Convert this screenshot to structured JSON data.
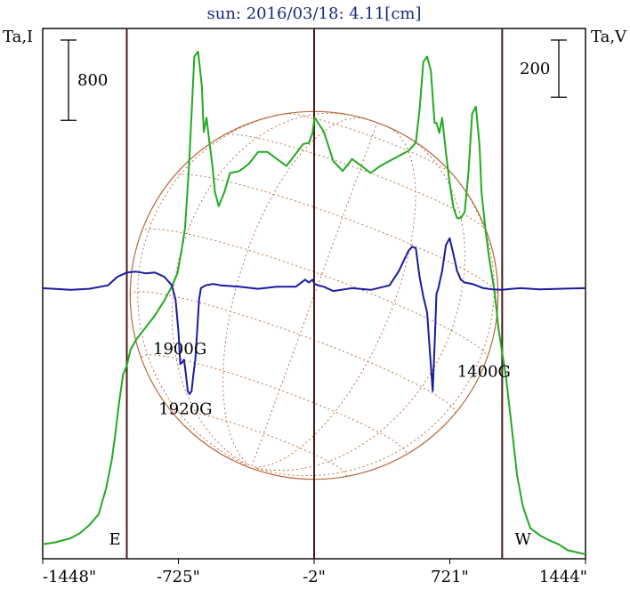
{
  "title": "sun: 2016/03/18: 4.11[cm]",
  "chart_data": {
    "type": "line",
    "x_unit": "arcsec",
    "xlim": [
      -1448,
      1444
    ],
    "x_ticks": [
      -1448,
      -725,
      -2,
      721,
      1444
    ],
    "x_tick_labels": [
      "-1448\"",
      "-725\"",
      "-2\"",
      "721\"",
      "1444\""
    ],
    "left_axis_label": "Ta,I",
    "right_axis_label": "Ta,V",
    "left_scale_bar": 800,
    "left_scale_bar_label": "800",
    "right_scale_bar": 200,
    "right_scale_bar_label": "200",
    "vertical_markers": [
      {
        "x": -1000,
        "label": "E"
      },
      {
        "x": -2,
        "label": ""
      },
      {
        "x": 1000,
        "label": "W"
      }
    ],
    "disk": {
      "center_x": -2,
      "radius_arcsec": 980,
      "color": "#b5653a"
    },
    "series": [
      {
        "key": "I",
        "color": "#22aa22",
        "x": [
          -1448,
          -1380,
          -1300,
          -1250,
          -1200,
          -1150,
          -1110,
          -1080,
          -1060,
          -1040,
          -1020,
          -1000,
          -980,
          -950,
          -900,
          -850,
          -800,
          -760,
          -730,
          -710,
          -690,
          -670,
          -655,
          -640,
          -620,
          -600,
          -590,
          -575,
          -560,
          -545,
          -530,
          -510,
          -480,
          -450,
          -400,
          -350,
          -300,
          -250,
          -200,
          -150,
          -100,
          -60,
          -30,
          -10,
          0,
          20,
          50,
          100,
          150,
          200,
          250,
          300,
          350,
          400,
          450,
          500,
          540,
          560,
          580,
          600,
          620,
          640,
          650,
          665,
          680,
          700,
          720,
          740,
          760,
          780,
          800,
          820,
          840,
          860,
          870,
          880,
          890,
          910,
          930,
          960,
          980,
          1000,
          1020,
          1050,
          1080,
          1110,
          1150,
          1200,
          1250,
          1300,
          1350,
          1444
        ],
        "y": [
          40,
          60,
          100,
          150,
          230,
          340,
          600,
          880,
          1150,
          1470,
          1730,
          1820,
          1980,
          2080,
          2200,
          2320,
          2470,
          2610,
          2740,
          2950,
          3190,
          3760,
          4330,
          4900,
          4950,
          4600,
          4150,
          4290,
          4050,
          3830,
          3550,
          3410,
          3550,
          3740,
          3760,
          3830,
          3950,
          3950,
          3880,
          3810,
          3930,
          4030,
          4040,
          4140,
          4290,
          4240,
          4150,
          3860,
          3760,
          3880,
          3810,
          3740,
          3810,
          3860,
          3910,
          3960,
          4040,
          4370,
          4850,
          4900,
          4760,
          4240,
          4240,
          4140,
          4290,
          3950,
          3640,
          3400,
          3290,
          3290,
          3350,
          3740,
          4330,
          4400,
          4210,
          4000,
          3550,
          3190,
          2900,
          2550,
          2200,
          1950,
          1710,
          1220,
          720,
          420,
          200,
          130,
          80,
          40,
          -20,
          -60
        ],
        "display_range": [
          -60,
          4950
        ],
        "scale_bar": 800
      },
      {
        "key": "V",
        "color": "#1a1aa0",
        "x": [
          -1448,
          -1300,
          -1200,
          -1100,
          -1050,
          -1000,
          -950,
          -900,
          -850,
          -800,
          -760,
          -740,
          -725,
          -715,
          -705,
          -695,
          -685,
          -675,
          -665,
          -655,
          -645,
          -635,
          -625,
          -615,
          -605,
          -580,
          -540,
          -500,
          -400,
          -300,
          -200,
          -100,
          -50,
          -30,
          -10,
          0,
          20,
          50,
          100,
          200,
          300,
          400,
          450,
          500,
          520,
          540,
          560,
          580,
          600,
          620,
          630,
          640,
          650,
          660,
          670,
          680,
          700,
          720,
          740,
          760,
          780,
          800,
          840,
          870,
          900,
          950,
          1000,
          1050,
          1100,
          1200,
          1300,
          1444
        ],
        "y": [
          0,
          -6,
          -2,
          10,
          40,
          55,
          58,
          52,
          55,
          40,
          10,
          -40,
          -150,
          -265,
          -260,
          -250,
          -300,
          -360,
          -370,
          -360,
          -300,
          -250,
          -150,
          -40,
          0,
          10,
          15,
          10,
          5,
          -2,
          5,
          5,
          30,
          20,
          30,
          15,
          10,
          5,
          -10,
          0,
          -6,
          10,
          60,
          130,
          145,
          140,
          40,
          -30,
          -85,
          -270,
          -360,
          -200,
          -20,
          0,
          30,
          60,
          150,
          175,
          120,
          60,
          30,
          20,
          15,
          8,
          0,
          -4,
          -6,
          -2,
          0,
          -4,
          -2,
          0
        ],
        "display_range": [
          -380,
          255
        ],
        "scale_bar": 200
      }
    ],
    "annotations": [
      {
        "x": -860,
        "y": -230,
        "series": "V",
        "text": "1900G"
      },
      {
        "x": -830,
        "y": -440,
        "series": "V",
        "text": "1920G"
      },
      {
        "x": 760,
        "y": -310,
        "series": "V",
        "text": "1400G"
      }
    ],
    "grid": false,
    "legend": "none"
  }
}
